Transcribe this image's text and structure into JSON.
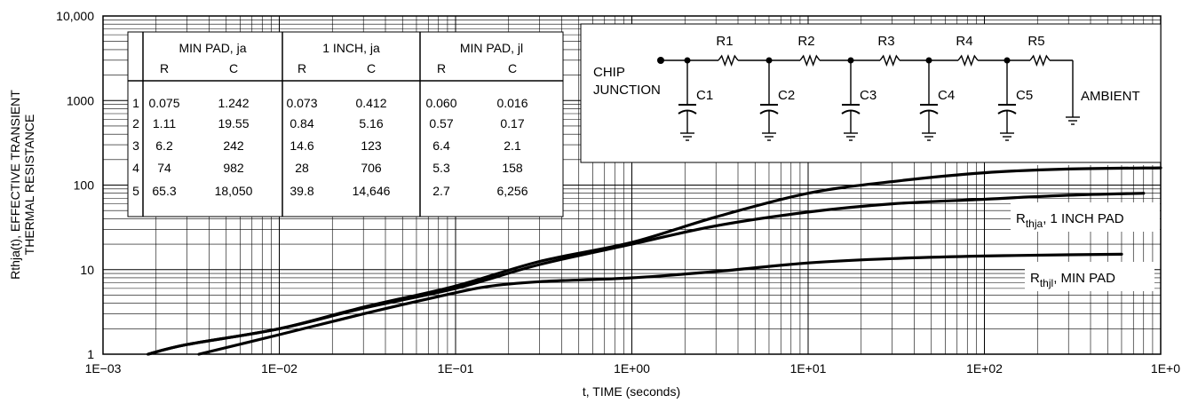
{
  "chart_data": {
    "type": "line",
    "x_scale": "log",
    "y_scale": "log",
    "xlim": [
      0.001,
      1000
    ],
    "ylim": [
      1,
      10000
    ],
    "xlabel": "t, TIME (seconds)",
    "ylabel_line1": "Rthja(t), EFFECTIVE TRANSIENT",
    "ylabel_line2": "THERMAL RESISTANCE",
    "x_ticks": [
      "1E−03",
      "1E−02",
      "1E−01",
      "1E+00",
      "1E+01",
      "1E+02",
      "1E+0"
    ],
    "y_ticks": [
      "1",
      "10",
      "100",
      "1000",
      "10,000"
    ],
    "grid": true,
    "series": [
      {
        "name_main": "R",
        "name_sub": "thja",
        "name_rest": ", MIN PAD",
        "points": [
          [
            0.0018,
            1.0
          ],
          [
            0.003,
            1.3
          ],
          [
            0.01,
            2.0
          ],
          [
            0.03,
            3.6
          ],
          [
            0.1,
            6.4
          ],
          [
            0.3,
            12.5
          ],
          [
            1,
            21
          ],
          [
            3,
            42
          ],
          [
            10,
            80
          ],
          [
            30,
            110
          ],
          [
            100,
            140
          ],
          [
            300,
            155
          ],
          [
            1000,
            160
          ]
        ]
      },
      {
        "name_main": "R",
        "name_sub": "thja",
        "name_rest": ", 1 INCH PAD",
        "points": [
          [
            0.0018,
            1.0
          ],
          [
            0.003,
            1.3
          ],
          [
            0.01,
            2.0
          ],
          [
            0.03,
            3.5
          ],
          [
            0.1,
            6.0
          ],
          [
            0.3,
            11.5
          ],
          [
            1,
            20
          ],
          [
            3,
            33
          ],
          [
            10,
            48
          ],
          [
            30,
            60
          ],
          [
            100,
            68
          ],
          [
            300,
            76
          ],
          [
            800,
            80
          ]
        ]
      },
      {
        "name_main": "R",
        "name_sub": "thjl",
        "name_rest": ", MIN PAD",
        "points": [
          [
            0.0035,
            1.0
          ],
          [
            0.01,
            1.7
          ],
          [
            0.03,
            3.0
          ],
          [
            0.08,
            4.8
          ],
          [
            0.15,
            6.3
          ],
          [
            0.3,
            7.2
          ],
          [
            1,
            8.0
          ],
          [
            3,
            9.5
          ],
          [
            10,
            12
          ],
          [
            30,
            13.5
          ],
          [
            100,
            14.5
          ],
          [
            300,
            15
          ],
          [
            600,
            15.2
          ]
        ]
      }
    ],
    "table": {
      "groups": [
        "MIN PAD, ja",
        "1 INCH, ja",
        "MIN PAD, jl"
      ],
      "subheaders": [
        "R",
        "C",
        "R",
        "C",
        "R",
        "C"
      ],
      "rows": [
        [
          "1",
          "0.075",
          "1.242",
          "0.073",
          "0.412",
          "0.060",
          "0.016"
        ],
        [
          "2",
          "1.11",
          "19.55",
          "0.84",
          "5.16",
          "0.57",
          "0.17"
        ],
        [
          "3",
          "6.2",
          "242",
          "14.6",
          "123",
          "6.4",
          "2.1"
        ],
        [
          "4",
          "74",
          "982",
          "28",
          "706",
          "5.3",
          "158"
        ],
        [
          "5",
          "65.3",
          "18,050",
          "39.8",
          "14,646",
          "2.7",
          "6,256"
        ]
      ]
    },
    "circuit": {
      "left_line1": "CHIP",
      "left_line2": "JUNCTION",
      "right_label": "AMBIENT",
      "resistors": [
        "R1",
        "R2",
        "R3",
        "R4",
        "R5"
      ],
      "capacitors": [
        "C1",
        "C2",
        "C3",
        "C4",
        "C5"
      ]
    }
  }
}
